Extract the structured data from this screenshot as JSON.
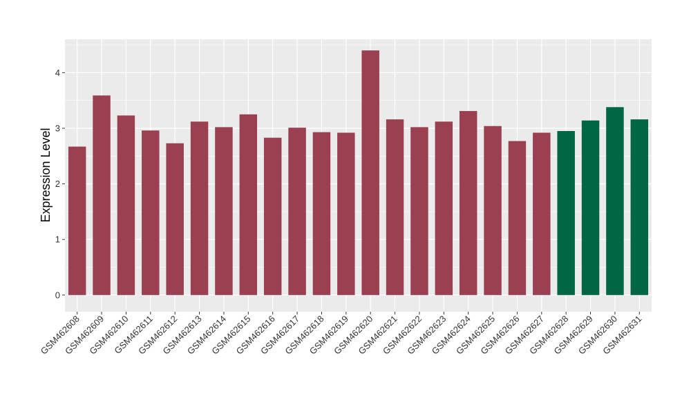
{
  "chart_data": {
    "type": "bar",
    "ylabel": "Expression Level",
    "xlabel": "",
    "ylim": [
      -0.3,
      4.6
    ],
    "yticks": [
      0,
      1,
      2,
      3,
      4
    ],
    "grid": true,
    "categories": [
      "GSM462608",
      "GSM462609",
      "GSM462610",
      "GSM462611",
      "GSM462612",
      "GSM462613",
      "GSM462614",
      "GSM462615",
      "GSM462616",
      "GSM462617",
      "GSM462618",
      "GSM462619",
      "GSM462620",
      "GSM462621",
      "GSM462622",
      "GSM462623",
      "GSM462624",
      "GSM462625",
      "GSM462626",
      "GSM462627",
      "GSM462628",
      "GSM462629",
      "GSM462630",
      "GSM462631"
    ],
    "values": [
      2.67,
      3.59,
      3.23,
      2.96,
      2.73,
      3.12,
      3.02,
      3.25,
      2.83,
      3.01,
      2.93,
      2.92,
      4.4,
      3.16,
      3.02,
      3.12,
      3.31,
      3.04,
      2.77,
      2.92,
      2.95,
      3.14,
      3.38,
      3.16
    ],
    "groups": [
      0,
      0,
      0,
      0,
      0,
      0,
      0,
      0,
      0,
      0,
      0,
      0,
      0,
      0,
      0,
      0,
      0,
      0,
      0,
      0,
      1,
      1,
      1,
      1
    ],
    "group_colors": [
      "#9a4050",
      "#006643"
    ],
    "panel_background": "#ebebeb",
    "grid_color": "#ffffff"
  }
}
